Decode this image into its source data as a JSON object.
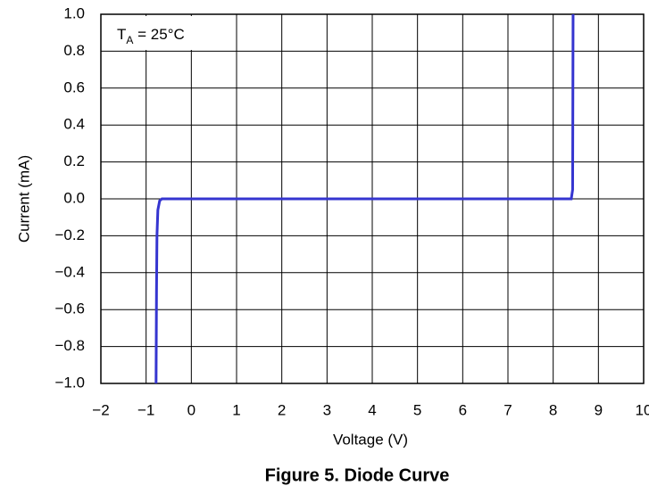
{
  "chart_data": {
    "type": "line",
    "caption": "Figure 5. Diode Curve",
    "xlabel": "Voltage (V)",
    "ylabel": "Current (mA)",
    "annotation": [
      "T",
      "A",
      " = 25°C"
    ],
    "x": [
      -0.78,
      -0.77,
      -0.76,
      -0.74,
      -0.7,
      -0.65,
      8.4,
      8.43,
      8.44
    ],
    "series": [
      {
        "name": "Diode",
        "color": "#3535d0",
        "values": [
          -1.0,
          -0.5,
          -0.2,
          -0.06,
          -0.01,
          0,
          0,
          0.05,
          1.0
        ]
      }
    ],
    "xlim": [
      -2,
      10
    ],
    "ylim": [
      -1,
      1
    ],
    "xticks": [
      {
        "value": -2,
        "label": "−2"
      },
      {
        "value": -1,
        "label": "−1"
      },
      0,
      1,
      2,
      3,
      4,
      5,
      6,
      7,
      8,
      9,
      10
    ],
    "yticks": [
      {
        "value": 1,
        "label": "1.0"
      },
      {
        "value": 0.8,
        "label": "0.8"
      },
      {
        "value": 0.6,
        "label": "0.6"
      },
      {
        "value": 0.4,
        "label": "0.4"
      },
      {
        "value": 0.2,
        "label": "0.2"
      },
      {
        "value": 0,
        "label": "0.0"
      },
      {
        "value": -0.2,
        "label": "−0.2"
      },
      {
        "value": -0.4,
        "label": "−0.4"
      },
      {
        "value": -0.6,
        "label": "−0.6"
      },
      {
        "value": -0.8,
        "label": "−0.8"
      },
      {
        "value": -1,
        "label": "−1.0"
      }
    ],
    "grid": true
  }
}
